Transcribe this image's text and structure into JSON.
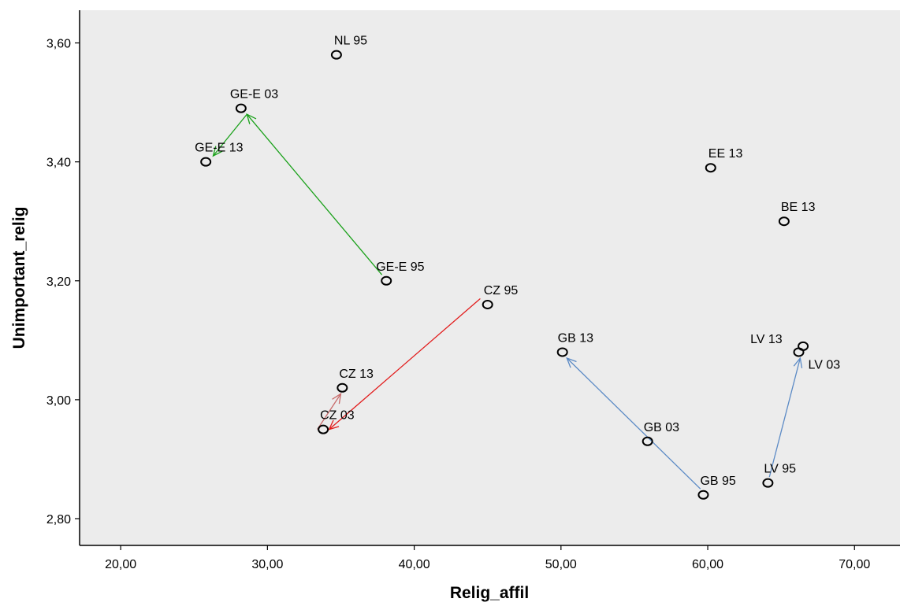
{
  "chart_data": {
    "type": "scatter",
    "title": "",
    "xlabel": "Relig_affil",
    "ylabel": "Unimportant_relig",
    "xlim": [
      17.2,
      73.1
    ],
    "ylim": [
      2.755,
      3.655
    ],
    "x_ticks": [
      {
        "value": 20,
        "label": "20,00"
      },
      {
        "value": 30,
        "label": "30,00"
      },
      {
        "value": 40,
        "label": "40,00"
      },
      {
        "value": 50,
        "label": "50,00"
      },
      {
        "value": 60,
        "label": "60,00"
      },
      {
        "value": 70,
        "label": "70,00"
      }
    ],
    "y_ticks": [
      {
        "value": 2.8,
        "label": "2,80"
      },
      {
        "value": 3.0,
        "label": "3,00"
      },
      {
        "value": 3.2,
        "label": "3,20"
      },
      {
        "value": 3.4,
        "label": "3,40"
      },
      {
        "value": 3.6,
        "label": "3,60"
      }
    ],
    "grid": false,
    "plot_background": "#ececec",
    "points": [
      {
        "label": "NL 95",
        "x": 34.7,
        "y": 3.58
      },
      {
        "label": "GE-E 03",
        "x": 28.2,
        "y": 3.49
      },
      {
        "label": "GE-E 13",
        "x": 25.8,
        "y": 3.4
      },
      {
        "label": "GE-E 95",
        "x": 38.1,
        "y": 3.2
      },
      {
        "label": "EE 13",
        "x": 60.2,
        "y": 3.39
      },
      {
        "label": "BE 13",
        "x": 65.2,
        "y": 3.3
      },
      {
        "label": "CZ 95",
        "x": 45.0,
        "y": 3.16
      },
      {
        "label": "CZ 13",
        "x": 35.1,
        "y": 3.02
      },
      {
        "label": "CZ 03",
        "x": 33.8,
        "y": 2.95
      },
      {
        "label": "GB 13",
        "x": 50.1,
        "y": 3.08
      },
      {
        "label": "GB 03",
        "x": 55.9,
        "y": 2.93
      },
      {
        "label": "GB 95",
        "x": 59.7,
        "y": 2.84
      },
      {
        "label": "LV 13",
        "x": 66.5,
        "y": 3.09
      },
      {
        "label": "LV 03",
        "x": 66.2,
        "y": 3.08
      },
      {
        "label": "LV 95",
        "x": 64.1,
        "y": 2.86
      }
    ],
    "arrows": [
      {
        "color": "#1aa11a",
        "x1": 37.8,
        "y1": 3.21,
        "x2": 28.6,
        "y2": 3.48
      },
      {
        "color": "#1aa11a",
        "x1": 28.6,
        "y1": 3.48,
        "x2": 26.3,
        "y2": 3.41
      },
      {
        "color": "#e21a1a",
        "x1": 44.5,
        "y1": 3.17,
        "x2": 34.2,
        "y2": 2.95
      },
      {
        "color": "#c86a6a",
        "x1": 33.4,
        "y1": 2.95,
        "x2": 35.0,
        "y2": 3.01
      },
      {
        "color": "#5b8ac5",
        "x1": 59.5,
        "y1": 2.85,
        "x2": 50.4,
        "y2": 3.07
      },
      {
        "color": "#5b8ac5",
        "x1": 64.2,
        "y1": 2.87,
        "x2": 66.3,
        "y2": 3.07
      }
    ]
  }
}
